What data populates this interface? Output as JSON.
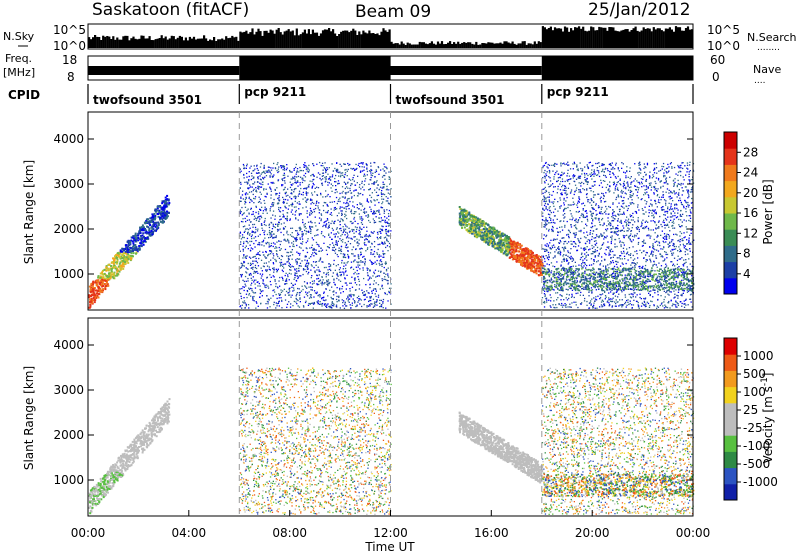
{
  "header": {
    "station": "Saskatoon (fitACF)",
    "beam": "Beam 09",
    "date": "25/Jan/2012"
  },
  "side_labels": {
    "nsky": "N.Sky",
    "nsearch": "N.Search",
    "freq": "Freq.",
    "freq_unit": "[MHz]",
    "nave": "Nave",
    "cpid": "CPID"
  },
  "strip_axes": {
    "noise_left_ticks": [
      "10^5",
      "10^0"
    ],
    "noise_right_ticks": [
      "10^5",
      "10^0"
    ],
    "freq_left_ticks": [
      "18",
      "8"
    ],
    "nave_right_ticks": [
      "60",
      "0"
    ]
  },
  "cpid_segments": [
    {
      "label": "twofsound 3501",
      "start_hour": 0,
      "end_hour": 6
    },
    {
      "label": "pcp 9211",
      "start_hour": 6,
      "end_hour": 12
    },
    {
      "label": "twofsound 3501",
      "start_hour": 12,
      "end_hour": 18
    },
    {
      "label": "pcp 9211",
      "start_hour": 18,
      "end_hour": 24
    }
  ],
  "chart_data": [
    {
      "type": "heatmap",
      "panel": "power",
      "ylabel": "Slant Range [km]",
      "y_ticks": [
        1000,
        2000,
        3000,
        4000
      ],
      "ylim": [
        200,
        4600
      ],
      "xlim": [
        0,
        24
      ],
      "colorbar": {
        "title": "Power [dB]",
        "ticks": [
          "28",
          "24",
          "20",
          "16",
          "12",
          "8",
          "4"
        ],
        "colors": [
          "#0000ee",
          "#1c3fa6",
          "#2f6c8a",
          "#3a8c55",
          "#6fb84a",
          "#c8c832",
          "#f2a81e",
          "#f07a1c",
          "#e5341a",
          "#cc0000"
        ]
      }
    },
    {
      "type": "heatmap",
      "panel": "velocity",
      "ylabel": "Slant Range [km]",
      "y_ticks": [
        1000,
        2000,
        3000,
        4000
      ],
      "ylim": [
        200,
        4600
      ],
      "xlim": [
        0,
        24
      ],
      "colorbar": {
        "title": "Velocity [m s^-1]",
        "ticks": [
          "1000",
          "500",
          "100",
          "25",
          "-25",
          "-100",
          "-500",
          "-1000"
        ],
        "colors": [
          "#1020a8",
          "#2c54c2",
          "#2e8a44",
          "#58c040",
          "#bdbdbd",
          "#bdbdbd",
          "#f2d21e",
          "#f29a1e",
          "#ee5a16",
          "#dd0000"
        ]
      }
    }
  ],
  "x_axis": {
    "ticks": [
      "00:00",
      "04:00",
      "08:00",
      "12:00",
      "16:00",
      "20:00",
      "00:00"
    ],
    "tick_hours": [
      0,
      4,
      8,
      12,
      16,
      20,
      24
    ],
    "label": "Time UT"
  }
}
